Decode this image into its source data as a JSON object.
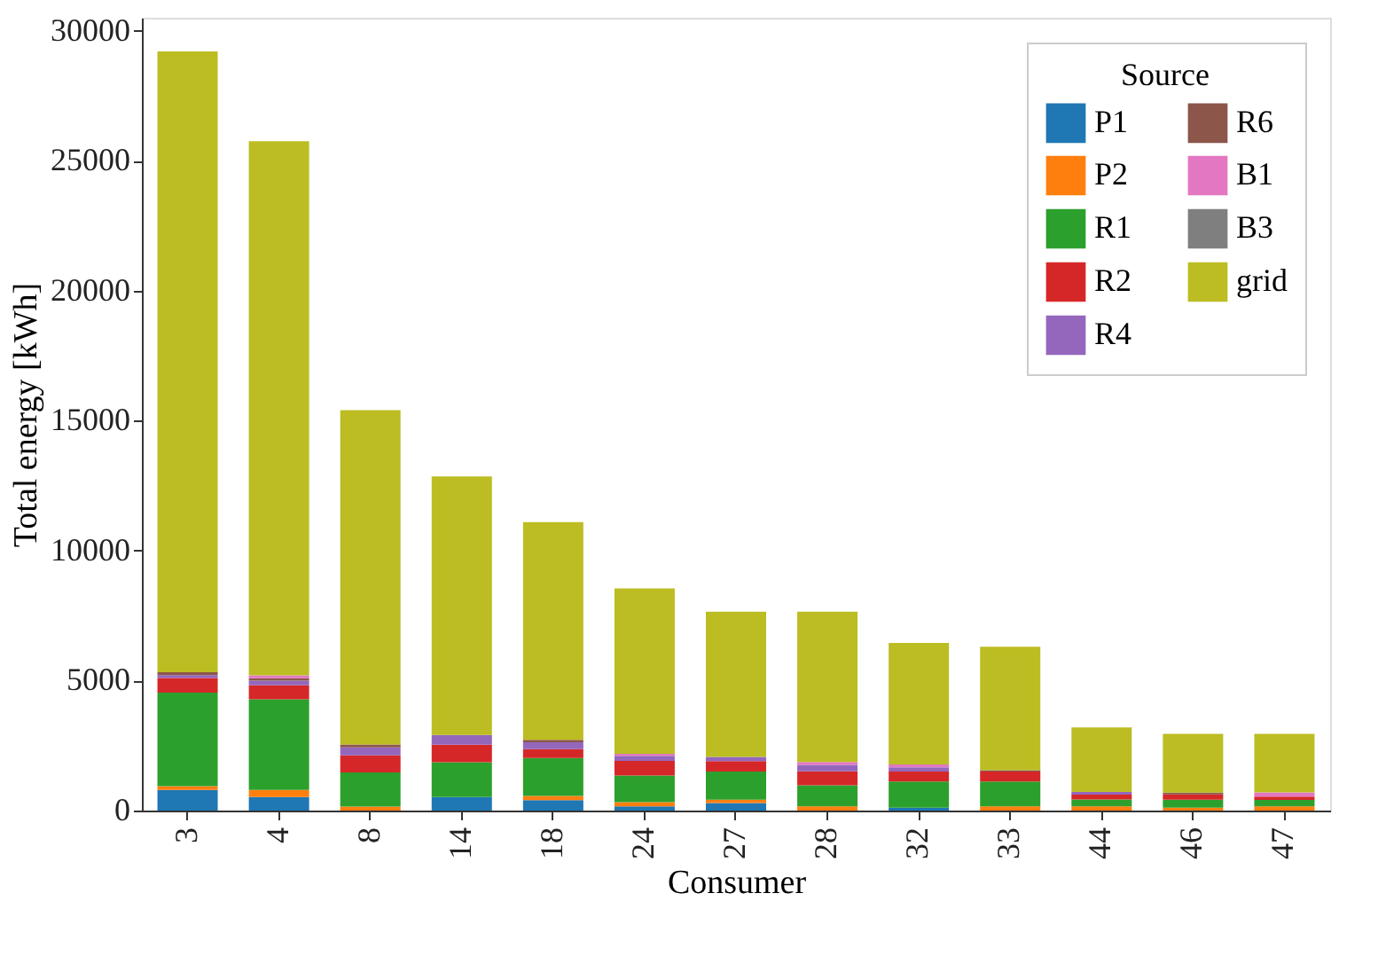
{
  "chart_data": {
    "type": "bar",
    "stacked": true,
    "xlabel": "Consumer",
    "ylabel": "Total energy [kWh]",
    "legend_title": "Source",
    "legend": "top right",
    "grid": false,
    "categories": [
      "3",
      "4",
      "8",
      "14",
      "18",
      "24",
      "27",
      "28",
      "32",
      "33",
      "44",
      "46",
      "47"
    ],
    "ylim": [
      0,
      30500
    ],
    "yticks": [
      0,
      5000,
      10000,
      15000,
      20000,
      25000,
      30000
    ],
    "series": [
      {
        "name": "P1",
        "color": "#1f77b4",
        "values": [
          790,
          520,
          0,
          520,
          400,
          160,
          290,
          0,
          110,
          0,
          0,
          0,
          0
        ]
      },
      {
        "name": "P2",
        "color": "#ff7f0e",
        "values": [
          150,
          270,
          150,
          0,
          160,
          160,
          130,
          160,
          0,
          160,
          160,
          110,
          160
        ]
      },
      {
        "name": "R1",
        "color": "#2ca02c",
        "values": [
          3600,
          3490,
          1320,
          1340,
          1460,
          1030,
          1080,
          810,
          1010,
          960,
          270,
          310,
          250
        ]
      },
      {
        "name": "R2",
        "color": "#d62728",
        "values": [
          560,
          540,
          650,
          670,
          340,
          560,
          400,
          540,
          380,
          380,
          180,
          200,
          130
        ]
      },
      {
        "name": "R4",
        "color": "#9467bd",
        "values": [
          110,
          180,
          310,
          380,
          270,
          200,
          160,
          250,
          160,
          0,
          110,
          0,
          0
        ]
      },
      {
        "name": "R6",
        "color": "#8c564b",
        "values": [
          110,
          90,
          110,
          0,
          90,
          0,
          0,
          0,
          0,
          50,
          0,
          70,
          0
        ]
      },
      {
        "name": "B1",
        "color": "#e377c2",
        "values": [
          0,
          110,
          0,
          0,
          0,
          70,
          0,
          110,
          110,
          0,
          0,
          0,
          160
        ]
      },
      {
        "name": "B3",
        "color": "#7f7f7f",
        "values": [
          0,
          0,
          0,
          0,
          0,
          0,
          0,
          0,
          0,
          0,
          0,
          0,
          0
        ]
      },
      {
        "name": "grid",
        "color": "#bcbd22",
        "values": [
          23880,
          20550,
          12860,
          9940,
          8380,
          6370,
          5590,
          5780,
          4680,
          4750,
          2480,
          2260,
          2250
        ]
      }
    ]
  }
}
